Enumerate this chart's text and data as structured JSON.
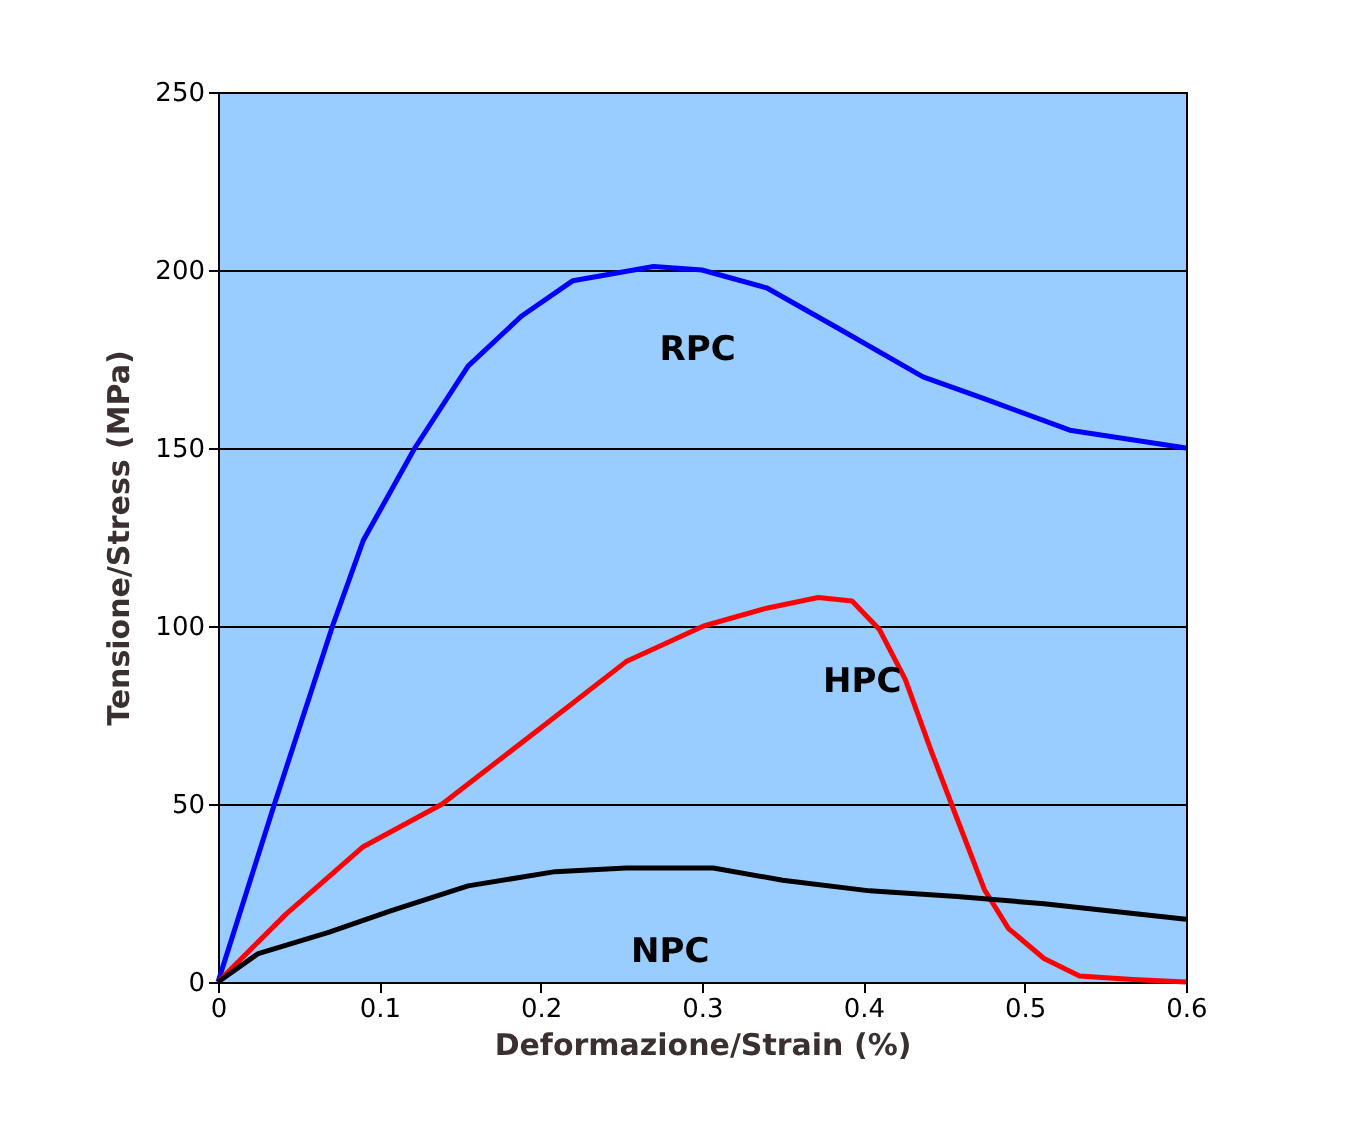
{
  "chart_data": {
    "type": "line",
    "xlabel": "Deformazione/Strain (%)",
    "ylabel": "Tensione/Stress (MPa)",
    "xlim": [
      0,
      0.6
    ],
    "xticks": [
      0,
      0.1,
      0.2,
      0.3,
      0.4,
      0.5,
      0.6
    ],
    "ylim": [
      0,
      250
    ],
    "yticks": [
      0,
      50,
      100,
      150,
      200,
      250
    ],
    "grid": "y",
    "legend": false,
    "marker": "none",
    "line_style": "solid",
    "series": [
      {
        "name": "RPC",
        "color": "#0000ff",
        "x": [
          0,
          0.035,
          0.071,
          0.09,
          0.122,
          0.155,
          0.188,
          0.22,
          0.27,
          0.3,
          0.34,
          0.383,
          0.437,
          0.474,
          0.528,
          0.6
        ],
        "values": [
          0,
          50,
          100,
          124,
          150,
          173,
          187,
          197,
          201,
          200,
          195,
          184,
          170,
          164,
          155,
          150
        ]
      },
      {
        "name": "HPC",
        "color": "#ff0000",
        "x": [
          0,
          0.042,
          0.09,
          0.139,
          0.199,
          0.253,
          0.301,
          0.34,
          0.372,
          0.393,
          0.41,
          0.426,
          0.442,
          0.458,
          0.475,
          0.49,
          0.512,
          0.534,
          0.567,
          0.6
        ],
        "values": [
          0,
          19,
          38,
          50,
          71,
          90,
          100,
          105,
          108,
          107,
          99,
          85,
          65,
          46,
          26,
          15,
          6.6,
          1.7,
          0.7,
          0
        ]
      },
      {
        "name": "NPC",
        "color": "#000000",
        "x": [
          0,
          0.025,
          0.069,
          0.107,
          0.155,
          0.209,
          0.253,
          0.307,
          0.35,
          0.404,
          0.458,
          0.512,
          0.6
        ],
        "values": [
          0,
          8,
          14,
          20,
          27,
          31,
          32,
          32,
          28.6,
          25.6,
          24,
          22,
          17.6
        ]
      }
    ]
  }
}
